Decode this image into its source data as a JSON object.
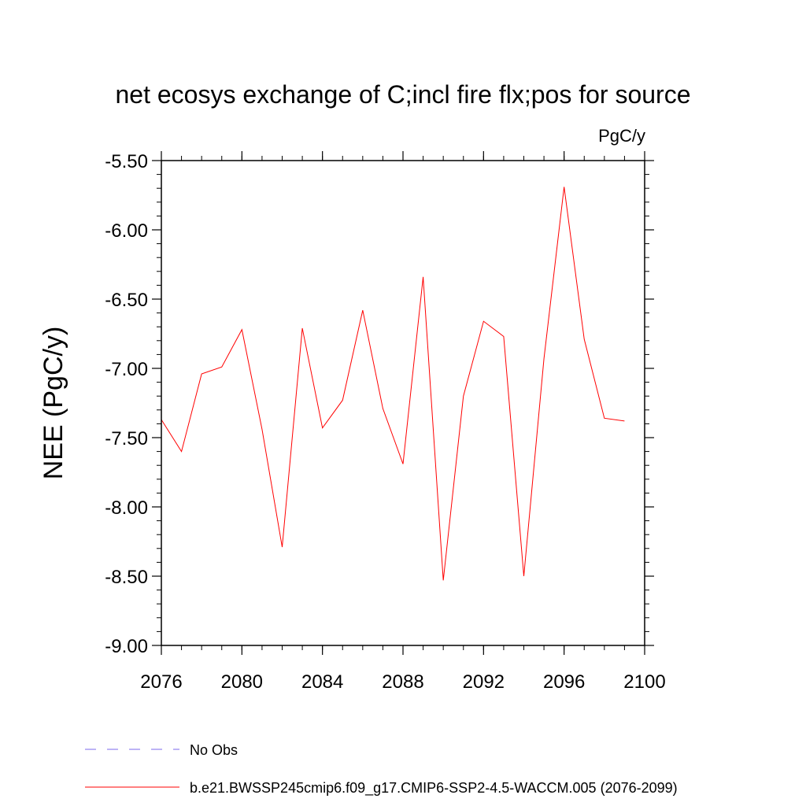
{
  "chart_data": {
    "type": "line",
    "title": "net ecosys exchange of C;incl fire flx;pos for source",
    "units": "PgC/y",
    "ylabel": "NEE  (PgC/y)",
    "xlabel": "",
    "xlim": [
      2076,
      2100
    ],
    "ylim": [
      -9.0,
      -5.5
    ],
    "x_ticks": [
      2076,
      2080,
      2084,
      2088,
      2092,
      2096,
      2100
    ],
    "x_tick_labels": [
      "2076",
      "2080",
      "2084",
      "2088",
      "2092",
      "2096",
      "2100"
    ],
    "y_ticks": [
      -5.5,
      -6.0,
      -6.5,
      -7.0,
      -7.5,
      -8.0,
      -8.5,
      -9.0
    ],
    "y_tick_labels": [
      "-5.50",
      "-6.00",
      "-6.50",
      "-7.00",
      "-7.50",
      "-8.00",
      "-8.50",
      "-9.00"
    ],
    "series": [
      {
        "name": "b.e21.BWSSP245cmip6.f09_g17.CMIP6-SSP2-4.5-WACCM.005 (2076-2099)",
        "color": "#ff0000",
        "style": "solid",
        "x": [
          2076,
          2077,
          2078,
          2079,
          2080,
          2081,
          2082,
          2083,
          2084,
          2085,
          2086,
          2087,
          2088,
          2089,
          2090,
          2091,
          2092,
          2093,
          2094,
          2095,
          2096,
          2097,
          2098,
          2099
        ],
        "y": [
          -7.37,
          -7.6,
          -7.04,
          -6.99,
          -6.72,
          -7.44,
          -8.29,
          -6.71,
          -7.43,
          -7.23,
          -6.58,
          -7.29,
          -7.69,
          -6.34,
          -8.53,
          -7.2,
          -6.66,
          -6.77,
          -8.5,
          -6.93,
          -5.69,
          -6.79,
          -7.36,
          -7.38
        ]
      }
    ],
    "legend": [
      {
        "label": "No Obs",
        "color": "#7b68ee",
        "style": "dashed"
      },
      {
        "label": "b.e21.BWSSP245cmip6.f09_g17.CMIP6-SSP2-4.5-WACCM.005 (2076-2099)",
        "color": "#ff0000",
        "style": "solid"
      }
    ]
  }
}
